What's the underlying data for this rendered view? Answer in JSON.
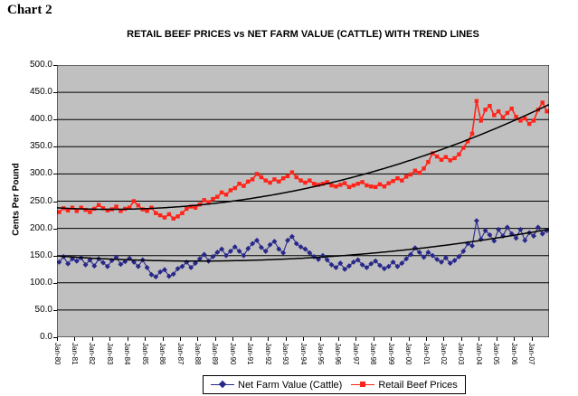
{
  "page": {
    "chart_label": "Chart 2"
  },
  "chart": {
    "title": "RETAIL BEEF PRICES vs NET FARM VALUE (CATTLE) WITH TREND LINES",
    "plot_background": "#C0C0C0",
    "gridline_color": "#000000",
    "y_axis": {
      "title": "Cents Per Pound",
      "tick_labels": [
        "500.0",
        "450.0",
        "400.0",
        "350.0",
        "300.0",
        "250.0",
        "200.0",
        "150.0",
        "100.0",
        "50.0",
        "0.0"
      ]
    },
    "x_axis": {
      "tick_labels": [
        "Jan-80",
        "Jan-81",
        "Jan-82",
        "Jan-83",
        "Jan-84",
        "Jan-85",
        "Jan-86",
        "Jan-87",
        "Jan-88",
        "Jan-89",
        "Jan-90",
        "Jan-91",
        "Jan-92",
        "Jan-93",
        "Jan-94",
        "Jan-95",
        "Jan-96",
        "Jan-97",
        "Jan-98",
        "Jan-99",
        "Jan-00",
        "Jan-01",
        "Jan-02",
        "Jan-03",
        "Jan-04",
        "Jan-05",
        "Jan-06",
        "Jan-07"
      ]
    },
    "legend": [
      {
        "label": "Net Farm Value (Cattle)",
        "color": "#28288A",
        "marker": "diamond"
      },
      {
        "label": "Retail Beef Prices",
        "color": "#FF2419",
        "marker": "square"
      }
    ]
  },
  "chart_data": {
    "type": "line",
    "title": "RETAIL BEEF PRICES vs NET FARM VALUE (CATTLE) WITH TREND LINES",
    "xlabel": "",
    "ylabel": "Cents Per Pound",
    "ylim": [
      0,
      500
    ],
    "y_step": 50,
    "grid": "horizontal",
    "legend_position": "bottom",
    "x_start_year": 1980,
    "x_end_year": 2008,
    "points_per_year": 4,
    "x_tick_years": [
      "Jan-80",
      "Jan-81",
      "Jan-82",
      "Jan-83",
      "Jan-84",
      "Jan-85",
      "Jan-86",
      "Jan-87",
      "Jan-88",
      "Jan-89",
      "Jan-90",
      "Jan-91",
      "Jan-92",
      "Jan-93",
      "Jan-94",
      "Jan-95",
      "Jan-96",
      "Jan-97",
      "Jan-98",
      "Jan-99",
      "Jan-00",
      "Jan-01",
      "Jan-02",
      "Jan-03",
      "Jan-04",
      "Jan-05",
      "Jan-06",
      "Jan-07"
    ],
    "series": [
      {
        "name": "Net Farm Value (Cattle)",
        "color": "#28288A",
        "marker": "diamond",
        "values": [
          138,
          148,
          135,
          144,
          140,
          146,
          133,
          142,
          131,
          144,
          137,
          130,
          141,
          147,
          134,
          139,
          145,
          138,
          130,
          142,
          128,
          115,
          111,
          120,
          124,
          112,
          116,
          126,
          130,
          138,
          128,
          136,
          144,
          152,
          140,
          148,
          156,
          162,
          150,
          158,
          166,
          158,
          150,
          163,
          172,
          178,
          165,
          158,
          170,
          176,
          162,
          155,
          178,
          185,
          172,
          166,
          162,
          155,
          148,
          143,
          150,
          142,
          133,
          128,
          136,
          125,
          131,
          138,
          142,
          133,
          128,
          135,
          140,
          132,
          126,
          130,
          138,
          130,
          136,
          144,
          152,
          164,
          156,
          147,
          156,
          150,
          143,
          138,
          146,
          136,
          141,
          148,
          158,
          172,
          168,
          214,
          180,
          196,
          188,
          177,
          198,
          186,
          202,
          190,
          182,
          198,
          178,
          192,
          186,
          202,
          190,
          196
        ]
      },
      {
        "name": "Retail Beef Prices",
        "color": "#FF2419",
        "marker": "square",
        "values": [
          230,
          237,
          233,
          238,
          232,
          238,
          234,
          230,
          236,
          243,
          237,
          233,
          235,
          240,
          232,
          236,
          238,
          250,
          242,
          235,
          232,
          238,
          228,
          224,
          220,
          226,
          218,
          222,
          228,
          236,
          240,
          238,
          244,
          252,
          248,
          254,
          258,
          266,
          262,
          270,
          274,
          282,
          278,
          286,
          290,
          300,
          294,
          288,
          284,
          290,
          286,
          292,
          296,
          303,
          294,
          288,
          284,
          288,
          282,
          280,
          282,
          285,
          279,
          277,
          280,
          283,
          276,
          279,
          282,
          285,
          279,
          277,
          276,
          281,
          277,
          283,
          287,
          292,
          288,
          295,
          299,
          306,
          302,
          310,
          322,
          338,
          332,
          326,
          331,
          325,
          329,
          336,
          348,
          360,
          374,
          434,
          398,
          418,
          425,
          408,
          415,
          404,
          412,
          420,
          405,
          398,
          402,
          392,
          398,
          418,
          431,
          415
        ]
      }
    ],
    "trend_lines": [
      {
        "series": "Net Farm Value (Cattle)",
        "fit": "quadratic",
        "color": "#000000",
        "min_value": 140,
        "min_year": 1988,
        "coeff": 0.146
      },
      {
        "series": "Retail Beef Prices",
        "fit": "quadratic",
        "color": "#000000",
        "min_value": 235,
        "min_year": 1983,
        "coeff": 0.308
      }
    ]
  }
}
